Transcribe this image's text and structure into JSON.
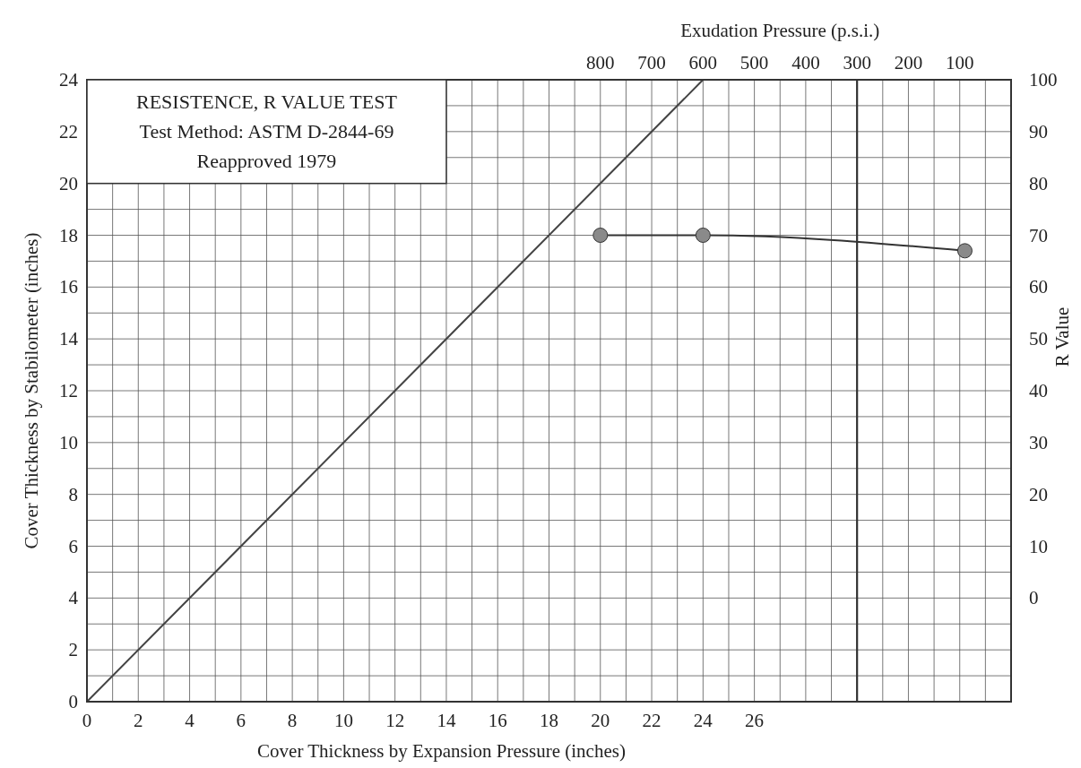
{
  "chart_data": {
    "type": "line",
    "xlabel": "Cover Thickness by Expansion Pressure (inches)",
    "ylabel": "Cover Thickness by Stabilometer (inches)",
    "y2label": "R Value",
    "x2label": "Exudation Pressure (p.s.i.)",
    "annotations": [
      "RESISTENCE, R VALUE TEST",
      "Test Method: ASTM D-2844-69",
      "Reapproved 1979"
    ],
    "xlim": [
      0,
      36
    ],
    "ylim": [
      0,
      24
    ],
    "y2lim": [
      -20,
      100
    ],
    "x2lim": [
      1800,
      0
    ],
    "xticks": [
      0,
      {
        "value": 1,
        "label": null
      },
      2,
      {
        "value": 3,
        "label": null
      },
      4,
      {
        "value": 5,
        "label": null
      },
      6,
      {
        "value": 7,
        "label": null
      },
      8,
      {
        "value": 9,
        "label": null
      },
      10,
      {
        "value": 11,
        "label": null
      },
      12,
      {
        "value": 13,
        "label": null
      },
      14,
      {
        "value": 15,
        "label": null
      },
      16,
      {
        "value": 17,
        "label": null
      },
      18,
      {
        "value": 19,
        "label": null
      },
      20,
      {
        "value": 21,
        "label": null
      },
      22,
      {
        "value": 23,
        "label": null
      },
      24,
      {
        "value": 25,
        "label": null
      },
      26,
      {
        "value": 27,
        "label": null
      },
      {
        "value": 28,
        "label": null
      },
      {
        "value": 29,
        "label": null
      },
      {
        "value": 30,
        "label": null
      },
      {
        "value": 31,
        "label": null
      },
      {
        "value": 32,
        "label": null
      },
      {
        "value": 33,
        "label": null
      },
      {
        "value": 34,
        "label": null
      },
      {
        "value": 35,
        "label": null
      },
      {
        "value": 36,
        "label": null
      }
    ],
    "yticks": [
      0,
      {
        "value": 1,
        "label": null
      },
      2,
      {
        "value": 3,
        "label": null
      },
      4,
      {
        "value": 5,
        "label": null
      },
      6,
      {
        "value": 7,
        "label": null
      },
      8,
      {
        "value": 9,
        "label": null
      },
      10,
      {
        "value": 11,
        "label": null
      },
      12,
      {
        "value": 13,
        "label": null
      },
      14,
      {
        "value": 15,
        "label": null
      },
      16,
      {
        "value": 17,
        "label": null
      },
      18,
      {
        "value": 19,
        "label": null
      },
      20,
      {
        "value": 21,
        "label": null
      },
      22,
      {
        "value": 23,
        "label": null
      },
      24
    ],
    "y2ticks": [
      0,
      10,
      20,
      30,
      40,
      50,
      60,
      70,
      80,
      90,
      100
    ],
    "x2ticks": [
      800,
      700,
      600,
      500,
      400,
      300,
      200,
      100
    ],
    "grid": true,
    "ref_lines": [
      {
        "axis": "x",
        "value": 30,
        "color": "#333333"
      }
    ],
    "series": [
      {
        "color": "#444444",
        "x": [
          0,
          24
        ],
        "values": [
          0,
          24
        ],
        "marker": "none"
      },
      {
        "color": "#333333",
        "axis": "y2",
        "x": [
          20,
          24,
          34.2
        ],
        "values": [
          70,
          70,
          67
        ],
        "marker": "circle"
      }
    ]
  }
}
